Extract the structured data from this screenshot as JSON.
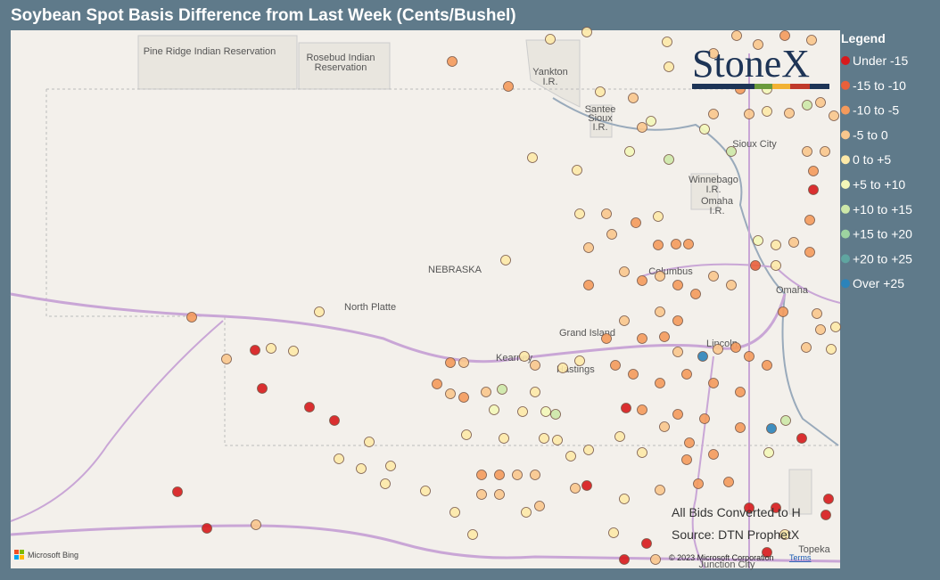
{
  "header": {
    "title": "Soybean Spot Basis Difference from Last Week (Cents/Bushel)"
  },
  "legend": {
    "title": "Legend",
    "items": [
      {
        "label": "Under -15",
        "color": "#d7191c"
      },
      {
        "label": "-15 to -10",
        "color": "#e9603b"
      },
      {
        "label": "-10 to -5",
        "color": "#f49a5c"
      },
      {
        "label": "-5 to 0",
        "color": "#f9c78d"
      },
      {
        "label": "0 to +5",
        "color": "#fde9a8"
      },
      {
        "label": "+5 to +10",
        "color": "#f3f7b9"
      },
      {
        "label": "+10 to +15",
        "color": "#cde8a9"
      },
      {
        "label": "+15 to +20",
        "color": "#9dd3a0"
      },
      {
        "label": "+20 to +25",
        "color": "#5fa5a0"
      },
      {
        "label": "Over +25",
        "color": "#2b83ba"
      }
    ]
  },
  "logo": "StoneX",
  "map": {
    "labels": [
      [
        "Pine Ridge Indian Reservation"
      ],
      [
        "Rosebud Indian",
        "Reservation"
      ],
      [
        "Yankton",
        "I.R."
      ],
      [
        "Santee",
        "Sioux",
        "I.R."
      ],
      [
        "Sioux City"
      ],
      [
        "Winnebago",
        "I.R."
      ],
      [
        "Omaha",
        "I.R."
      ],
      [
        "NEBRASKA"
      ],
      [
        "North Platte"
      ],
      [
        "Columbus"
      ],
      [
        "Grand Island"
      ],
      [
        "Kearney"
      ],
      [
        "Hastings"
      ],
      [
        "Lincoln"
      ],
      [
        "Omaha"
      ],
      [
        "Topeka"
      ],
      [
        "Junction City"
      ]
    ],
    "dots": [
      2,
      4,
      0,
      4,
      4,
      3,
      0,
      0,
      0,
      0,
      0,
      3,
      4,
      4,
      4,
      4,
      4,
      4,
      4,
      4,
      4,
      4,
      4,
      4,
      2,
      2,
      4,
      3,
      3,
      5,
      5,
      6,
      4,
      3,
      2,
      4,
      2,
      2,
      2,
      3,
      3,
      2,
      3,
      2,
      3,
      2,
      2,
      3,
      3,
      3,
      2,
      3,
      2,
      2,
      2,
      3,
      9,
      3,
      2,
      2,
      2,
      2,
      2,
      2,
      2,
      2,
      2,
      0,
      2,
      2,
      2,
      2,
      9,
      6,
      0,
      5,
      2,
      2,
      2,
      3,
      4,
      4,
      4,
      4,
      4,
      4,
      2,
      3,
      2,
      3,
      6,
      5,
      4,
      5,
      6,
      4,
      2,
      3,
      4,
      3,
      4,
      4,
      2,
      2,
      3,
      3,
      3,
      3,
      4,
      3,
      3,
      0,
      4,
      3,
      2,
      2,
      0,
      0,
      0,
      0,
      4,
      0,
      0,
      0,
      3,
      4,
      4,
      4,
      3,
      3,
      2,
      3,
      3,
      4,
      4,
      2,
      5,
      3,
      3,
      4,
      3,
      6,
      3,
      3,
      5,
      6,
      3,
      3,
      2,
      0,
      2,
      5,
      4,
      3,
      2,
      1,
      4,
      2,
      3,
      3,
      4,
      3,
      4,
      4
    ],
    "notes": [
      "All Bids Converted to H",
      "Source: DTN ProphetX"
    ],
    "attribution": "Microsoft Bing",
    "copyright": "© 2023 Microsoft Corporation",
    "terms": "Terms"
  }
}
